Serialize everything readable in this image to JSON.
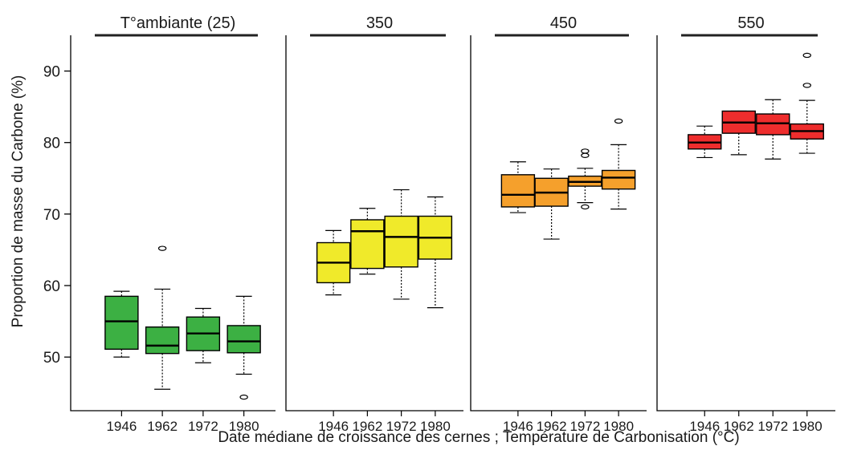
{
  "chart_data": {
    "type": "boxplot",
    "ylabel": "Proportion de masse du Carbone  (%)",
    "xlabel": "Date médiane de croissance des cernes ; Température de Carbonisation (°C)",
    "ylim": [
      42.5,
      95
    ],
    "yticks": [
      50,
      60,
      70,
      80,
      90
    ],
    "categories": [
      "1946",
      "1962",
      "1972",
      "1980"
    ],
    "panels": [
      {
        "label": "T°ambiante (25)",
        "color": "#3cb043",
        "boxes": [
          {
            "category": "1946",
            "min": 50.0,
            "q1": 51.1,
            "median": 55.0,
            "q3": 58.5,
            "max": 59.2,
            "outliers": []
          },
          {
            "category": "1962",
            "min": 45.5,
            "q1": 50.5,
            "median": 51.6,
            "q3": 54.2,
            "max": 59.5,
            "outliers": [
              65.2
            ]
          },
          {
            "category": "1972",
            "min": 49.2,
            "q1": 50.9,
            "median": 53.3,
            "q3": 55.6,
            "max": 56.8,
            "outliers": []
          },
          {
            "category": "1980",
            "min": 47.6,
            "q1": 50.6,
            "median": 52.2,
            "q3": 54.4,
            "max": 58.5,
            "outliers": [
              44.4
            ]
          }
        ]
      },
      {
        "label": "350",
        "color": "#f0ea2a",
        "boxes": [
          {
            "category": "1946",
            "min": 58.7,
            "q1": 60.4,
            "median": 63.2,
            "q3": 66.0,
            "max": 67.7,
            "outliers": []
          },
          {
            "category": "1962",
            "min": 61.6,
            "q1": 62.4,
            "median": 67.6,
            "q3": 69.2,
            "max": 70.8,
            "outliers": []
          },
          {
            "category": "1972",
            "min": 58.1,
            "q1": 62.6,
            "median": 66.8,
            "q3": 69.7,
            "max": 73.4,
            "outliers": []
          },
          {
            "category": "1980",
            "min": 56.9,
            "q1": 63.7,
            "median": 66.7,
            "q3": 69.7,
            "max": 72.4,
            "outliers": []
          }
        ]
      },
      {
        "label": "450",
        "color": "#f5a02c",
        "boxes": [
          {
            "category": "1946",
            "min": 70.2,
            "q1": 71.0,
            "median": 72.7,
            "q3": 75.5,
            "max": 77.3,
            "outliers": []
          },
          {
            "category": "1962",
            "min": 66.5,
            "q1": 71.1,
            "median": 73.0,
            "q3": 75.0,
            "max": 76.3,
            "outliers": []
          },
          {
            "category": "1972",
            "min": 71.6,
            "q1": 73.9,
            "median": 74.5,
            "q3": 75.3,
            "max": 76.4,
            "outliers": [
              71.0,
              78.2,
              78.8
            ]
          },
          {
            "category": "1980",
            "min": 70.7,
            "q1": 73.5,
            "median": 75.1,
            "q3": 76.1,
            "max": 79.7,
            "outliers": [
              83.0
            ]
          }
        ]
      },
      {
        "label": "550",
        "color": "#ee2d2d",
        "boxes": [
          {
            "category": "1946",
            "min": 77.9,
            "q1": 79.1,
            "median": 80.0,
            "q3": 81.1,
            "max": 82.3,
            "outliers": []
          },
          {
            "category": "1962",
            "min": 78.3,
            "q1": 81.3,
            "median": 82.8,
            "q3": 84.4,
            "max": 84.4,
            "outliers": []
          },
          {
            "category": "1972",
            "min": 77.7,
            "q1": 81.1,
            "median": 82.7,
            "q3": 84.0,
            "max": 86.0,
            "outliers": []
          },
          {
            "category": "1980",
            "min": 78.5,
            "q1": 80.5,
            "median": 81.6,
            "q3": 82.6,
            "max": 85.9,
            "outliers": [
              88.0,
              92.2
            ]
          }
        ]
      }
    ]
  }
}
